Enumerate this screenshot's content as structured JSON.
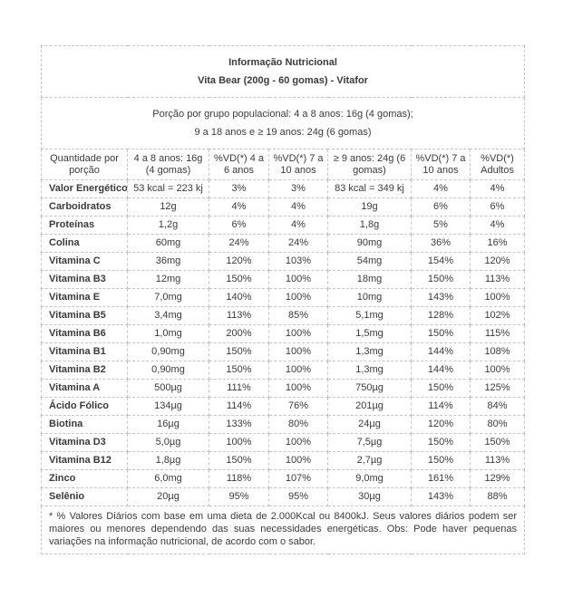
{
  "header": {
    "title": "Informação Nutricional",
    "subtitle": "Vita Bear (200g - 60 gomas) - Vitafor"
  },
  "portion": {
    "line1": "Porção por grupo populacional: 4 a 8 anos: 16g (4 gomas);",
    "line2": "9 a 18 anos e ≥ 19 anos: 24g (6 gomas)"
  },
  "table": {
    "columns": [
      "Quantidade por porção",
      "4 a 8 anos: 16g (4 gomas)",
      "%VD(*) 4 a 6 anos",
      "%VD(*) 7 a 10 anos",
      "≥ 9 anos: 24g (6 gomas)",
      "%VD(*) 7 a 10 anos",
      "%VD(*) Adultos"
    ],
    "rows": [
      [
        "Valor Energético",
        "53 kcal = 223 kj",
        "3%",
        "3%",
        "83 kcal = 349 kj",
        "4%",
        "4%"
      ],
      [
        "Carboidratos",
        "12g",
        "4%",
        "4%",
        "19g",
        "6%",
        "6%"
      ],
      [
        "Proteínas",
        "1,2g",
        "6%",
        "4%",
        "1,8g",
        "5%",
        "4%"
      ],
      [
        "Colina",
        "60mg",
        "24%",
        "24%",
        "90mg",
        "36%",
        "16%"
      ],
      [
        "Vitamina C",
        "36mg",
        "120%",
        "103%",
        "54mg",
        "154%",
        "120%"
      ],
      [
        "Vitamina B3",
        "12mg",
        "150%",
        "100%",
        "18mg",
        "150%",
        "113%"
      ],
      [
        "Vitamina E",
        "7,0mg",
        "140%",
        "100%",
        "10mg",
        "143%",
        "100%"
      ],
      [
        "Vitamina B5",
        "3,4mg",
        "113%",
        "85%",
        "5,1mg",
        "128%",
        "102%"
      ],
      [
        "Vitamina B6",
        "1,0mg",
        "200%",
        "100%",
        "1,5mg",
        "150%",
        "115%"
      ],
      [
        "Vitamina B1",
        "0,90mg",
        "150%",
        "100%",
        "1,3mg",
        "144%",
        "108%"
      ],
      [
        "Vitamina B2",
        "0,90mg",
        "150%",
        "100%",
        "1,3mg",
        "144%",
        "100%"
      ],
      [
        "Vitamina A",
        "500µg",
        "111%",
        "100%",
        "750µg",
        "150%",
        "125%"
      ],
      [
        "Ácido Fólico",
        "134µg",
        "114%",
        "76%",
        "201µg",
        "114%",
        "84%"
      ],
      [
        "Biotina",
        "16µg",
        "133%",
        "80%",
        "24µg",
        "120%",
        "80%"
      ],
      [
        "Vitamina D3",
        "5,0µg",
        "100%",
        "100%",
        "7,5µg",
        "150%",
        "150%"
      ],
      [
        "Vitamina B12",
        "1,8µg",
        "150%",
        "100%",
        "2,7µg",
        "150%",
        "113%"
      ],
      [
        "Zinco",
        "6,0mg",
        "118%",
        "107%",
        "9,0mg",
        "161%",
        "129%"
      ],
      [
        "Selênio",
        "20µg",
        "95%",
        "95%",
        "30µg",
        "143%",
        "88%"
      ]
    ]
  },
  "footnote": "* % Valores Diários com base em uma dieta de 2.000Kcal ou 8400kJ. Seus valores diários podem ser maiores ou menores dependendo das suas necessidades energéticas. Obs: Pode haver pequenas variações na informação nutricional, de acordo com o sabor.",
  "colors": {
    "text": "#3a3a3a",
    "border": "#c3c3c3",
    "background": "#ffffff"
  }
}
